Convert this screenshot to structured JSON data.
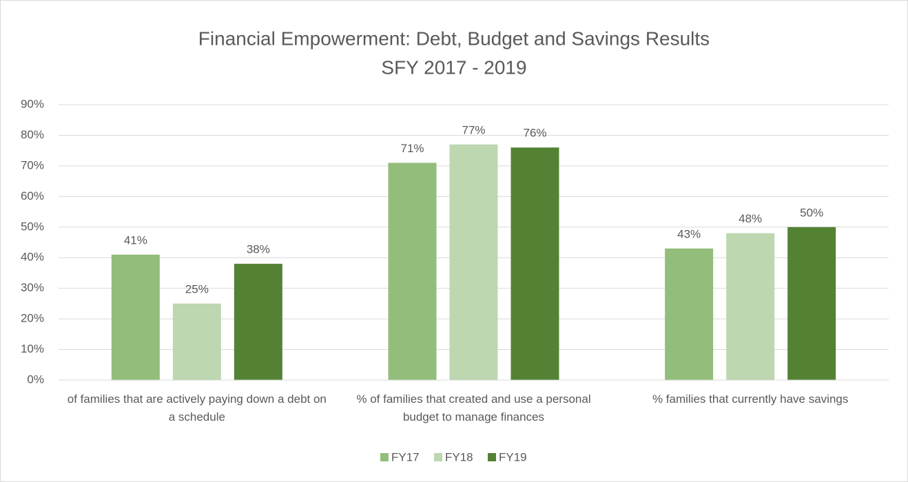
{
  "chart_data": {
    "type": "bar",
    "title": "Financial Empowerment: Debt, Budget and Savings Results",
    "subtitle": "SFY 2017 - 2019",
    "categories": [
      "of families that are actively paying down a debt on a schedule",
      "% of families that created and use a personal budget to manage finances",
      "% families that currently have savings"
    ],
    "series": [
      {
        "name": "FY17",
        "color": "#93bd7b",
        "values": [
          41,
          71,
          43
        ],
        "value_labels": [
          "41%",
          "71%",
          "43%"
        ]
      },
      {
        "name": "FY18",
        "color": "#bdd7b0",
        "values": [
          25,
          77,
          48
        ],
        "value_labels": [
          "25%",
          "77%",
          "48%"
        ]
      },
      {
        "name": "FY19",
        "color": "#548235",
        "values": [
          38,
          76,
          50
        ],
        "value_labels": [
          "38%",
          "76%",
          "50%"
        ]
      }
    ],
    "ylim": [
      0,
      90
    ],
    "yticks": [
      {
        "value": 0,
        "label": "0%"
      },
      {
        "value": 10,
        "label": "10%"
      },
      {
        "value": 20,
        "label": "20%"
      },
      {
        "value": 30,
        "label": "30%"
      },
      {
        "value": 40,
        "label": "40%"
      },
      {
        "value": 50,
        "label": "50%"
      },
      {
        "value": 60,
        "label": "60%"
      },
      {
        "value": 70,
        "label": "70%"
      },
      {
        "value": 80,
        "label": "80%"
      },
      {
        "value": 90,
        "label": "90%"
      }
    ],
    "grid": true,
    "legend": "bottom"
  }
}
